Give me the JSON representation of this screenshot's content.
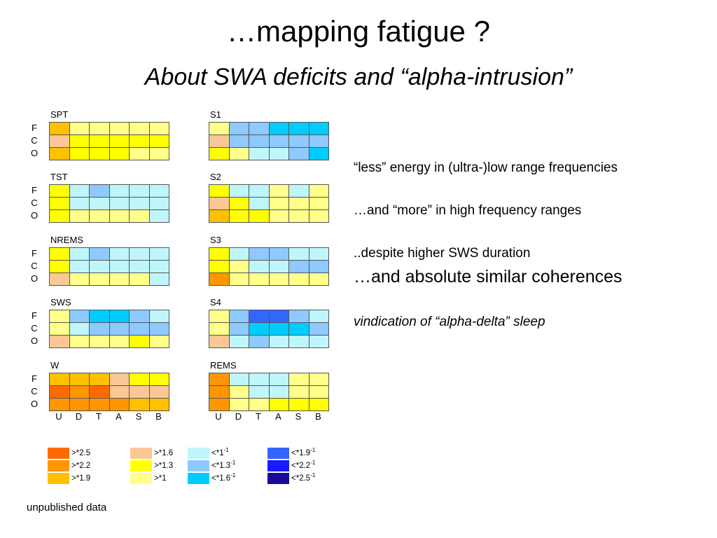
{
  "slide": {
    "title": "…mapping fatigue ?",
    "subtitle": "About SWA deficits and “alpha-intrusion”",
    "footer": "unpublished data"
  },
  "notes": [
    "“less” energy in (ultra-)low range frequencies",
    "…and “more” in high frequency ranges",
    "..despite higher SWS duration",
    "…and absolute similar coherences",
    "vindication of “alpha-delta” sleep"
  ],
  "chart_data": {
    "type": "heatmap",
    "rows": [
      "F",
      "C",
      "O"
    ],
    "columns": [
      "U",
      "D",
      "T",
      "A",
      "S",
      "B"
    ],
    "legend": [
      {
        "label": ">*2.5",
        "base": ">*2.5",
        "sup": "",
        "color": "#ff6a00"
      },
      {
        "label": ">*2.2",
        "base": ">*2.2",
        "sup": "",
        "color": "#ff9600"
      },
      {
        "label": ">*1.9",
        "base": ">*1.9",
        "sup": "",
        "color": "#ffc000"
      },
      {
        "label": ">*1.6",
        "base": ">*1.6",
        "sup": "",
        "color": "#fcc796"
      },
      {
        "label": ">*1.3",
        "base": ">*1.3",
        "sup": "",
        "color": "#ffff00"
      },
      {
        "label": ">*1",
        "base": ">*1",
        "sup": "",
        "color": "#ffff8a"
      },
      {
        "label": "<*1-1",
        "base": "<*1",
        "sup": "-1",
        "color": "#bff6fc"
      },
      {
        "label": "<*1.3-1",
        "base": "<*1.3",
        "sup": "-1",
        "color": "#8ec9ff"
      },
      {
        "label": "<*1.6-1",
        "base": "<*1.6",
        "sup": "-1",
        "color": "#00ccff"
      },
      {
        "label": "<*1.9-1",
        "base": "<*1.9",
        "sup": "-1",
        "color": "#3366ff"
      },
      {
        "label": "<*2.2-1",
        "base": "<*2.2",
        "sup": "-1",
        "color": "#1a1aff"
      },
      {
        "label": "<*2.5-1",
        "base": "<*2.5",
        "sup": "-1",
        "color": "#1a0a99"
      }
    ],
    "panels": [
      {
        "name": "SPT",
        "values": [
          [
            ">*1.9",
            ">*1",
            ">*1",
            ">*1",
            ">*1",
            ">*1"
          ],
          [
            ">*1.6",
            ">*1.3",
            ">*1.3",
            ">*1.3",
            ">*1.3",
            ">*1.3"
          ],
          [
            ">*1.9",
            ">*1.3",
            ">*1.3",
            ">*1.3",
            ">*1",
            ">*1"
          ]
        ]
      },
      {
        "name": "S1",
        "values": [
          [
            ">*1",
            "<*1.3-1",
            "<*1.3-1",
            "<*1.6-1",
            "<*1.6-1",
            "<*1.6-1"
          ],
          [
            ">*1.6",
            "<*1.3-1",
            "<*1.3-1",
            "<*1.3-1",
            "<*1.3-1",
            "<*1.3-1"
          ],
          [
            ">*1.3",
            ">*1",
            "<*1-1",
            "<*1-1",
            "<*1.3-1",
            "<*1.6-1"
          ]
        ]
      },
      {
        "name": "TST",
        "values": [
          [
            ">*1.3",
            "<*1-1",
            "<*1.3-1",
            "<*1-1",
            "<*1-1",
            "<*1-1"
          ],
          [
            ">*1.3",
            "<*1-1",
            "<*1-1",
            "<*1-1",
            "<*1-1",
            "<*1-1"
          ],
          [
            ">*1.3",
            ">*1",
            ">*1",
            ">*1",
            ">*1",
            "<*1-1"
          ]
        ]
      },
      {
        "name": "S2",
        "values": [
          [
            ">*1.3",
            "<*1-1",
            "<*1-1",
            ">*1",
            "<*1-1",
            ">*1"
          ],
          [
            ">*1.6",
            ">*1.3",
            "<*1-1",
            ">*1",
            ">*1",
            ">*1"
          ],
          [
            ">*1.9",
            ">*1.3",
            ">*1.3",
            ">*1",
            ">*1",
            ">*1"
          ]
        ]
      },
      {
        "name": "NREMS",
        "values": [
          [
            ">*1.3",
            "<*1-1",
            "<*1.3-1",
            "<*1-1",
            "<*1-1",
            "<*1-1"
          ],
          [
            ">*1.3",
            "<*1-1",
            "<*1-1",
            "<*1-1",
            "<*1-1",
            "<*1-1"
          ],
          [
            ">*1.6",
            ">*1",
            ">*1",
            ">*1",
            ">*1",
            "<*1-1"
          ]
        ]
      },
      {
        "name": "S3",
        "values": [
          [
            ">*1.3",
            "<*1-1",
            "<*1.3-1",
            "<*1.3-1",
            "<*1-1",
            "<*1-1"
          ],
          [
            ">*1.3",
            ">*1",
            "<*1-1",
            "<*1-1",
            "<*1.3-1",
            "<*1.3-1"
          ],
          [
            ">*2.2",
            ">*1",
            ">*1",
            ">*1",
            ">*1",
            ">*1"
          ]
        ]
      },
      {
        "name": "SWS",
        "values": [
          [
            ">*1",
            "<*1.3-1",
            "<*1.6-1",
            "<*1.6-1",
            "<*1.3-1",
            "<*1-1"
          ],
          [
            ">*1",
            "<*1-1",
            "<*1.3-1",
            "<*1.3-1",
            "<*1.3-1",
            "<*1.3-1"
          ],
          [
            ">*1.6",
            ">*1",
            ">*1",
            ">*1",
            ">*1.3",
            ">*1"
          ]
        ]
      },
      {
        "name": "S4",
        "values": [
          [
            ">*1",
            "<*1.3-1",
            "<*1.9-1",
            "<*1.9-1",
            "<*1.3-1",
            "<*1-1"
          ],
          [
            ">*1",
            "<*1.3-1",
            "<*1.6-1",
            "<*1.6-1",
            "<*1.6-1",
            "<*1.3-1"
          ],
          [
            ">*1.6",
            "<*1-1",
            "<*1.3-1",
            "<*1-1",
            "<*1-1",
            "<*1-1"
          ]
        ]
      },
      {
        "name": "W",
        "values": [
          [
            ">*1.9",
            ">*1.9",
            ">*1.9",
            ">*1.6",
            ">*1.3",
            ">*1.3"
          ],
          [
            ">*2.5",
            ">*2.2",
            ">*2.5",
            ">*1.6",
            ">*1.6",
            ">*1.6"
          ],
          [
            ">*2.2",
            ">*2.2",
            ">*2.2",
            ">*2.2",
            ">*1.9",
            ">*1.9"
          ]
        ]
      },
      {
        "name": "REMS",
        "values": [
          [
            ">*2.2",
            "<*1-1",
            "<*1-1",
            "<*1-1",
            ">*1",
            ">*1"
          ],
          [
            ">*2.2",
            ">*1",
            "<*1-1",
            "<*1-1",
            ">*1",
            ">*1"
          ],
          [
            ">*2.2",
            ">*1",
            ">*1",
            ">*1.3",
            ">*1.3",
            ">*1.3"
          ]
        ]
      }
    ]
  }
}
